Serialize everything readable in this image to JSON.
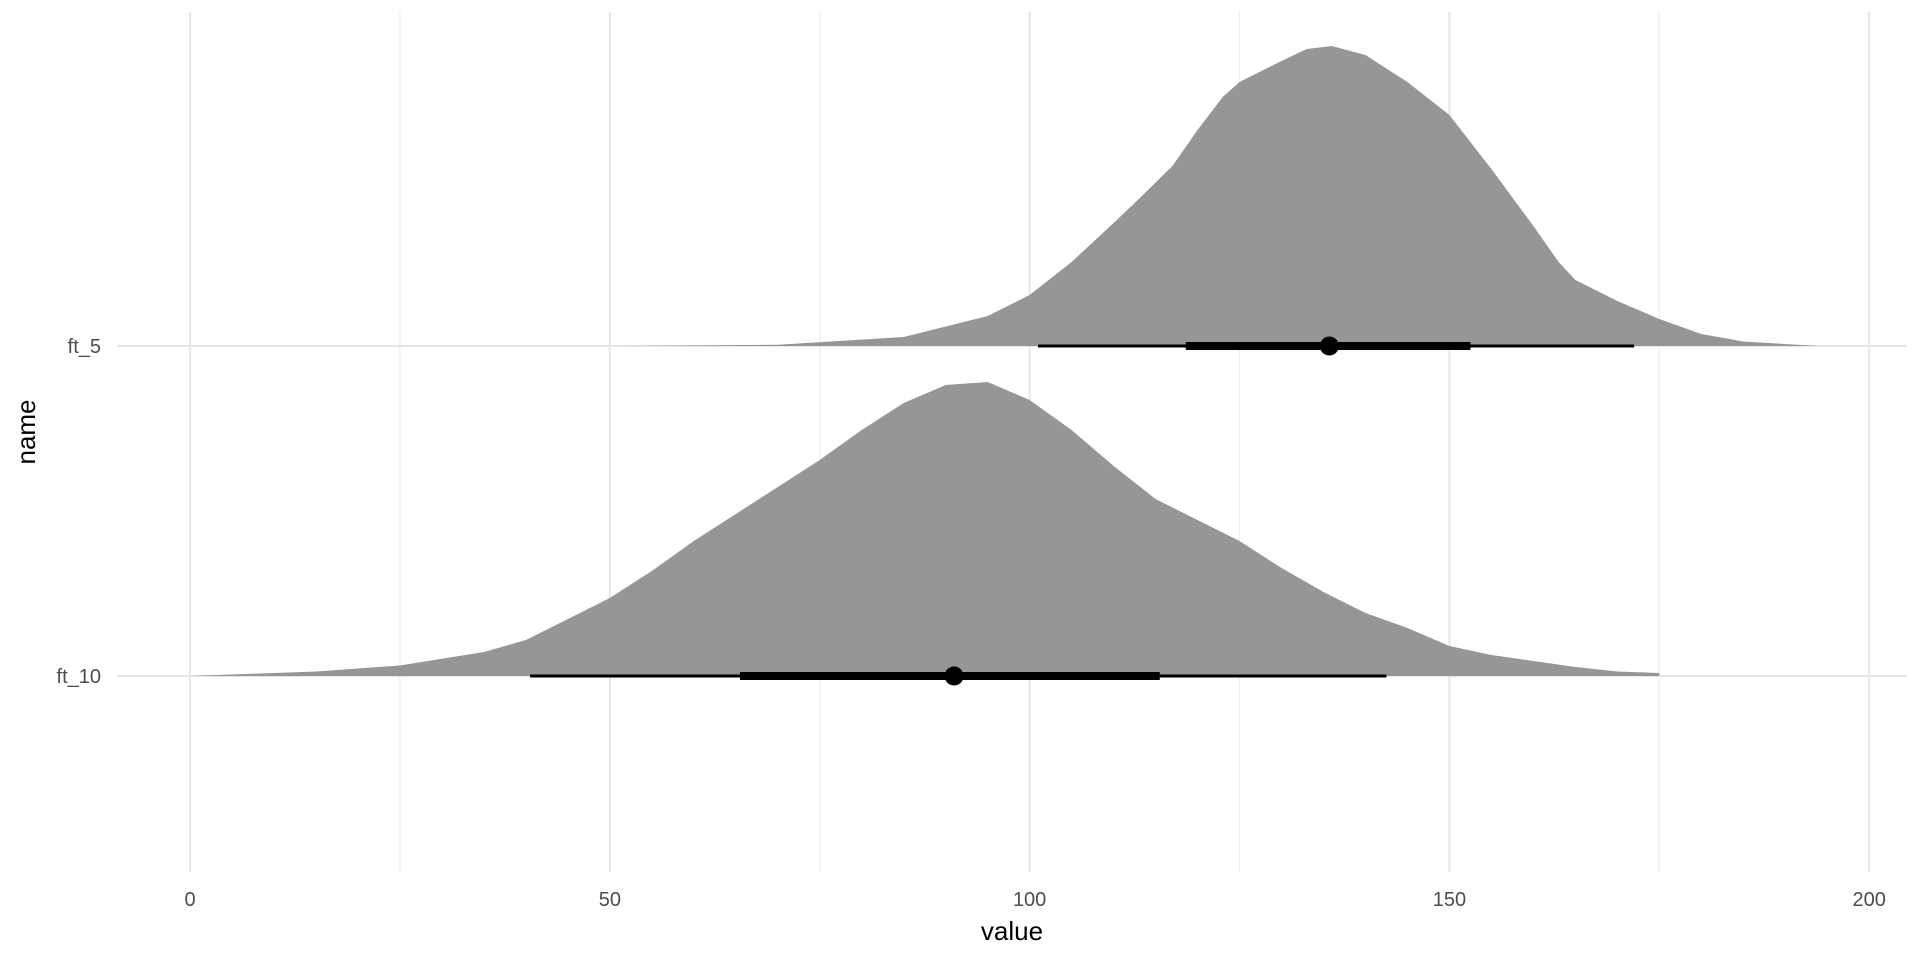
{
  "chart_data": {
    "type": "halfeye",
    "xlabel": "value",
    "ylabel": "name",
    "xlim": [
      -8.7,
      204.5
    ],
    "x_ticks": [
      0,
      50,
      100,
      150,
      200
    ],
    "x_minor_ticks": [
      25,
      75,
      125,
      175
    ],
    "categories": [
      "ft_5",
      "ft_10"
    ],
    "grid": true,
    "series": [
      {
        "name": "ft_5",
        "density_x": [
          50,
          70,
          85,
          95,
          100,
          105,
          110,
          113,
          117,
          120,
          123,
          125,
          130,
          133,
          136,
          140,
          145,
          150,
          155,
          160,
          163,
          165,
          170,
          175,
          180,
          185,
          194
        ],
        "density_y": [
          0.0,
          0.004,
          0.03,
          0.1,
          0.17,
          0.28,
          0.41,
          0.49,
          0.6,
          0.72,
          0.83,
          0.88,
          0.95,
          0.99,
          1.0,
          0.97,
          0.88,
          0.77,
          0.59,
          0.4,
          0.28,
          0.22,
          0.15,
          0.09,
          0.04,
          0.015,
          0.0
        ],
        "point": 135.7,
        "interval_66": [
          118.6,
          152.5
        ],
        "interval_95": [
          101.0,
          172.0
        ]
      },
      {
        "name": "ft_10",
        "density_x": [
          0,
          15,
          25,
          35,
          40,
          45,
          50,
          55,
          60,
          65,
          70,
          75,
          80,
          85,
          90,
          95,
          100,
          105,
          110,
          115,
          120,
          125,
          130,
          135,
          140,
          145,
          150,
          155,
          160,
          165,
          170,
          175
        ],
        "density_y": [
          0.0,
          0.015,
          0.035,
          0.08,
          0.12,
          0.19,
          0.26,
          0.35,
          0.45,
          0.54,
          0.63,
          0.72,
          0.82,
          0.91,
          0.97,
          0.98,
          0.92,
          0.82,
          0.7,
          0.59,
          0.52,
          0.45,
          0.36,
          0.28,
          0.21,
          0.16,
          0.1,
          0.07,
          0.05,
          0.03,
          0.015,
          0.01
        ],
        "point": 91.0,
        "interval_66": [
          65.5,
          115.5
        ],
        "interval_95": [
          40.5,
          142.5
        ]
      }
    ]
  }
}
